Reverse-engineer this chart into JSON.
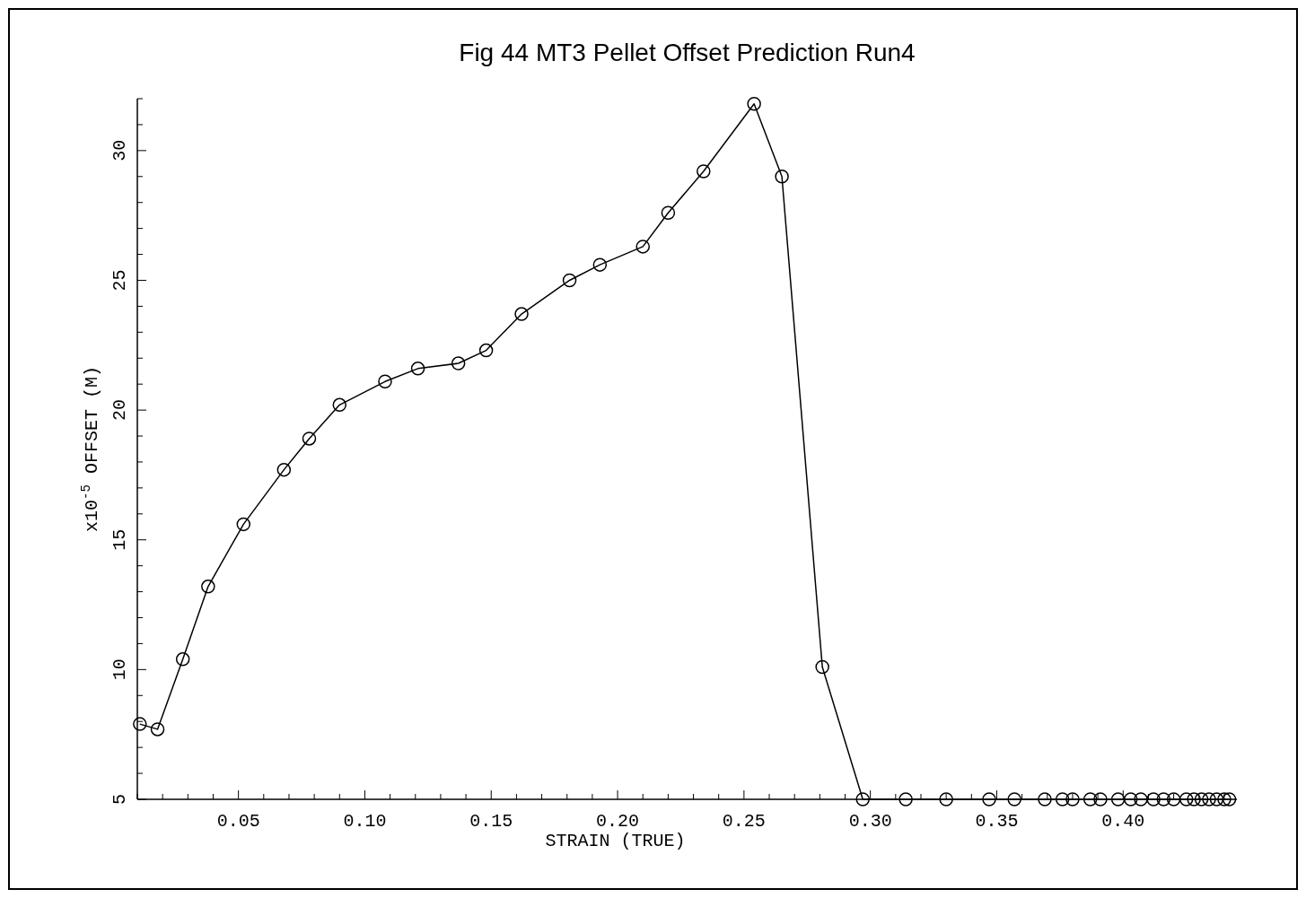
{
  "chart_data": {
    "type": "line",
    "title": "Fig 44   MT3 Pellet Offset Prediction Run4",
    "xlabel": "STRAIN (TRUE)",
    "ylabel": "x10$^{-5}$   OFFSET (M)",
    "marker": "circle",
    "line_style": "solid",
    "grid": false,
    "xlim": [
      0.01,
      0.445
    ],
    "ylim": [
      5,
      32
    ],
    "xticks": [
      {
        "value": 0.01,
        "label": null
      },
      {
        "value": 0.02,
        "label": null
      },
      {
        "value": 0.03,
        "label": null
      },
      {
        "value": 0.04,
        "label": null
      },
      {
        "value": 0.05,
        "label": "0.05"
      },
      {
        "value": 0.06,
        "label": null
      },
      {
        "value": 0.07,
        "label": null
      },
      {
        "value": 0.08,
        "label": null
      },
      {
        "value": 0.09,
        "label": null
      },
      {
        "value": 0.1,
        "label": "0.10"
      },
      {
        "value": 0.11,
        "label": null
      },
      {
        "value": 0.12,
        "label": null
      },
      {
        "value": 0.13,
        "label": null
      },
      {
        "value": 0.14,
        "label": null
      },
      {
        "value": 0.15,
        "label": "0.15"
      },
      {
        "value": 0.16,
        "label": null
      },
      {
        "value": 0.17,
        "label": null
      },
      {
        "value": 0.18,
        "label": null
      },
      {
        "value": 0.19,
        "label": null
      },
      {
        "value": 0.2,
        "label": "0.20"
      },
      {
        "value": 0.21,
        "label": null
      },
      {
        "value": 0.22,
        "label": null
      },
      {
        "value": 0.23,
        "label": null
      },
      {
        "value": 0.24,
        "label": null
      },
      {
        "value": 0.25,
        "label": "0.25"
      },
      {
        "value": 0.26,
        "label": null
      },
      {
        "value": 0.27,
        "label": null
      },
      {
        "value": 0.28,
        "label": null
      },
      {
        "value": 0.29,
        "label": null
      },
      {
        "value": 0.3,
        "label": "0.30"
      },
      {
        "value": 0.31,
        "label": null
      },
      {
        "value": 0.32,
        "label": null
      },
      {
        "value": 0.33,
        "label": null
      },
      {
        "value": 0.34,
        "label": null
      },
      {
        "value": 0.35,
        "label": "0.35"
      },
      {
        "value": 0.36,
        "label": null
      },
      {
        "value": 0.37,
        "label": null
      },
      {
        "value": 0.38,
        "label": null
      },
      {
        "value": 0.39,
        "label": null
      },
      {
        "value": 0.4,
        "label": "0.40"
      },
      {
        "value": 0.41,
        "label": null
      },
      {
        "value": 0.42,
        "label": null
      },
      {
        "value": 0.43,
        "label": null
      },
      {
        "value": 0.44,
        "label": null
      }
    ],
    "yticks": [
      5,
      {
        "value": 6,
        "label": null
      },
      {
        "value": 7,
        "label": null
      },
      {
        "value": 8,
        "label": null
      },
      {
        "value": 9,
        "label": null
      },
      10,
      {
        "value": 11,
        "label": null
      },
      {
        "value": 12,
        "label": null
      },
      {
        "value": 13,
        "label": null
      },
      {
        "value": 14,
        "label": null
      },
      15,
      {
        "value": 16,
        "label": null
      },
      {
        "value": 17,
        "label": null
      },
      {
        "value": 18,
        "label": null
      },
      {
        "value": 19,
        "label": null
      },
      20,
      {
        "value": 21,
        "label": null
      },
      {
        "value": 22,
        "label": null
      },
      {
        "value": 23,
        "label": null
      },
      {
        "value": 24,
        "label": null
      },
      25,
      {
        "value": 26,
        "label": null
      },
      {
        "value": 27,
        "label": null
      },
      {
        "value": 28,
        "label": null
      },
      {
        "value": 29,
        "label": null
      },
      30,
      {
        "value": 31,
        "label": null
      },
      {
        "value": 32,
        "label": null
      }
    ],
    "series": [
      {
        "color": "#000000",
        "x": [
          0.011,
          0.018,
          0.028,
          0.038,
          0.052,
          0.068,
          0.078,
          0.09,
          0.108,
          0.121,
          0.137,
          0.148,
          0.162,
          0.181,
          0.193,
          0.21,
          0.22,
          0.234,
          0.254,
          0.265,
          0.281,
          0.297,
          0.314,
          0.33,
          0.347,
          0.357,
          0.369,
          0.376,
          0.38,
          0.387,
          0.391,
          0.398,
          0.403,
          0.407,
          0.412,
          0.416,
          0.42,
          0.425,
          0.428,
          0.431,
          0.434,
          0.437,
          0.44,
          0.442
        ],
        "values": [
          7.9,
          7.7,
          10.4,
          13.2,
          15.6,
          17.7,
          18.9,
          20.2,
          21.1,
          21.6,
          21.8,
          22.3,
          23.7,
          25.0,
          25.6,
          26.3,
          27.6,
          29.2,
          31.8,
          29.0,
          10.1,
          5.0,
          5.0,
          5.0,
          5.0,
          5.0,
          5.0,
          5.0,
          5.0,
          5.0,
          5.0,
          5.0,
          5.0,
          5.0,
          5.0,
          5.0,
          5.0,
          5.0,
          5.0,
          5.0,
          5.0,
          5.0,
          5.0,
          5.0
        ]
      }
    ]
  }
}
